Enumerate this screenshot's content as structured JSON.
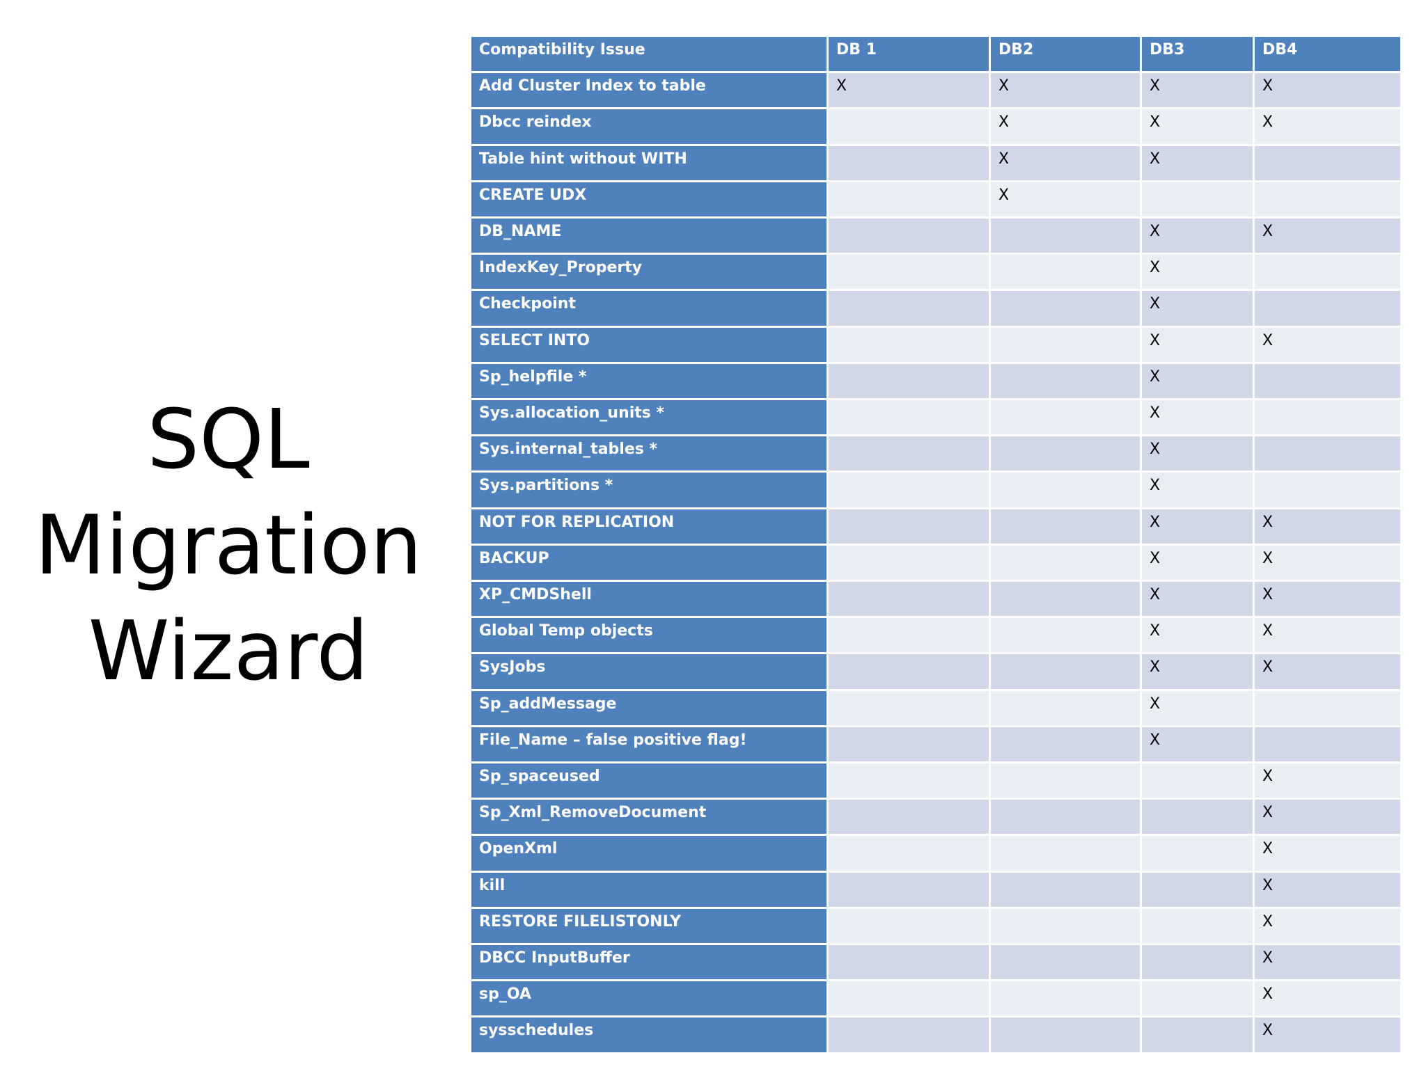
{
  "title": [
    "SQL",
    "Migration",
    "Wizard"
  ],
  "table": {
    "header": [
      "Compatibility Issue",
      "DB 1",
      "DB2",
      "DB3",
      "DB4"
    ],
    "rows": [
      [
        "Add Cluster Index to table",
        "X",
        "X",
        "X",
        "X"
      ],
      [
        "Dbcc reindex",
        null,
        "X",
        "X",
        "X"
      ],
      [
        "Table hint without WITH",
        null,
        "X",
        "X",
        null
      ],
      [
        "CREATE UDX",
        null,
        "X",
        null,
        null
      ],
      [
        "DB_NAME",
        null,
        null,
        "X",
        "X"
      ],
      [
        "IndexKey_Property",
        null,
        null,
        "X",
        null
      ],
      [
        "Checkpoint",
        null,
        null,
        "X",
        null
      ],
      [
        "SELECT INTO",
        null,
        null,
        "X",
        "X"
      ],
      [
        "Sp_helpfile *",
        null,
        null,
        "X",
        null
      ],
      [
        "Sys.allocation_units *",
        null,
        null,
        "X",
        null
      ],
      [
        "Sys.internal_tables *",
        null,
        null,
        "X",
        null
      ],
      [
        "Sys.partitions *",
        null,
        null,
        "X",
        null
      ],
      [
        "NOT FOR REPLICATION",
        null,
        null,
        "X",
        "X"
      ],
      [
        "BACKUP",
        null,
        null,
        "X",
        "X"
      ],
      [
        "XP_CMDShell",
        null,
        null,
        "X",
        "X"
      ],
      [
        "Global Temp objects",
        null,
        null,
        "X",
        "X"
      ],
      [
        "SysJobs",
        null,
        null,
        "X",
        "X"
      ],
      [
        "Sp_addMessage",
        null,
        null,
        "X",
        null
      ],
      [
        "File_Name – false positive flag!",
        null,
        null,
        "X",
        null
      ],
      [
        "Sp_spaceused",
        null,
        null,
        null,
        "X"
      ],
      [
        "Sp_Xml_RemoveDocument",
        null,
        null,
        null,
        "X"
      ],
      [
        "OpenXml",
        null,
        null,
        null,
        "X"
      ],
      [
        "kill",
        null,
        null,
        null,
        "X"
      ],
      [
        "RESTORE FILELISTONLY",
        null,
        null,
        null,
        "X"
      ],
      [
        "DBCC InputBuffer",
        null,
        null,
        null,
        "X"
      ],
      [
        "sp_OA",
        null,
        null,
        null,
        "X"
      ],
      [
        "sysschedules",
        null,
        null,
        null,
        "X"
      ]
    ]
  }
}
